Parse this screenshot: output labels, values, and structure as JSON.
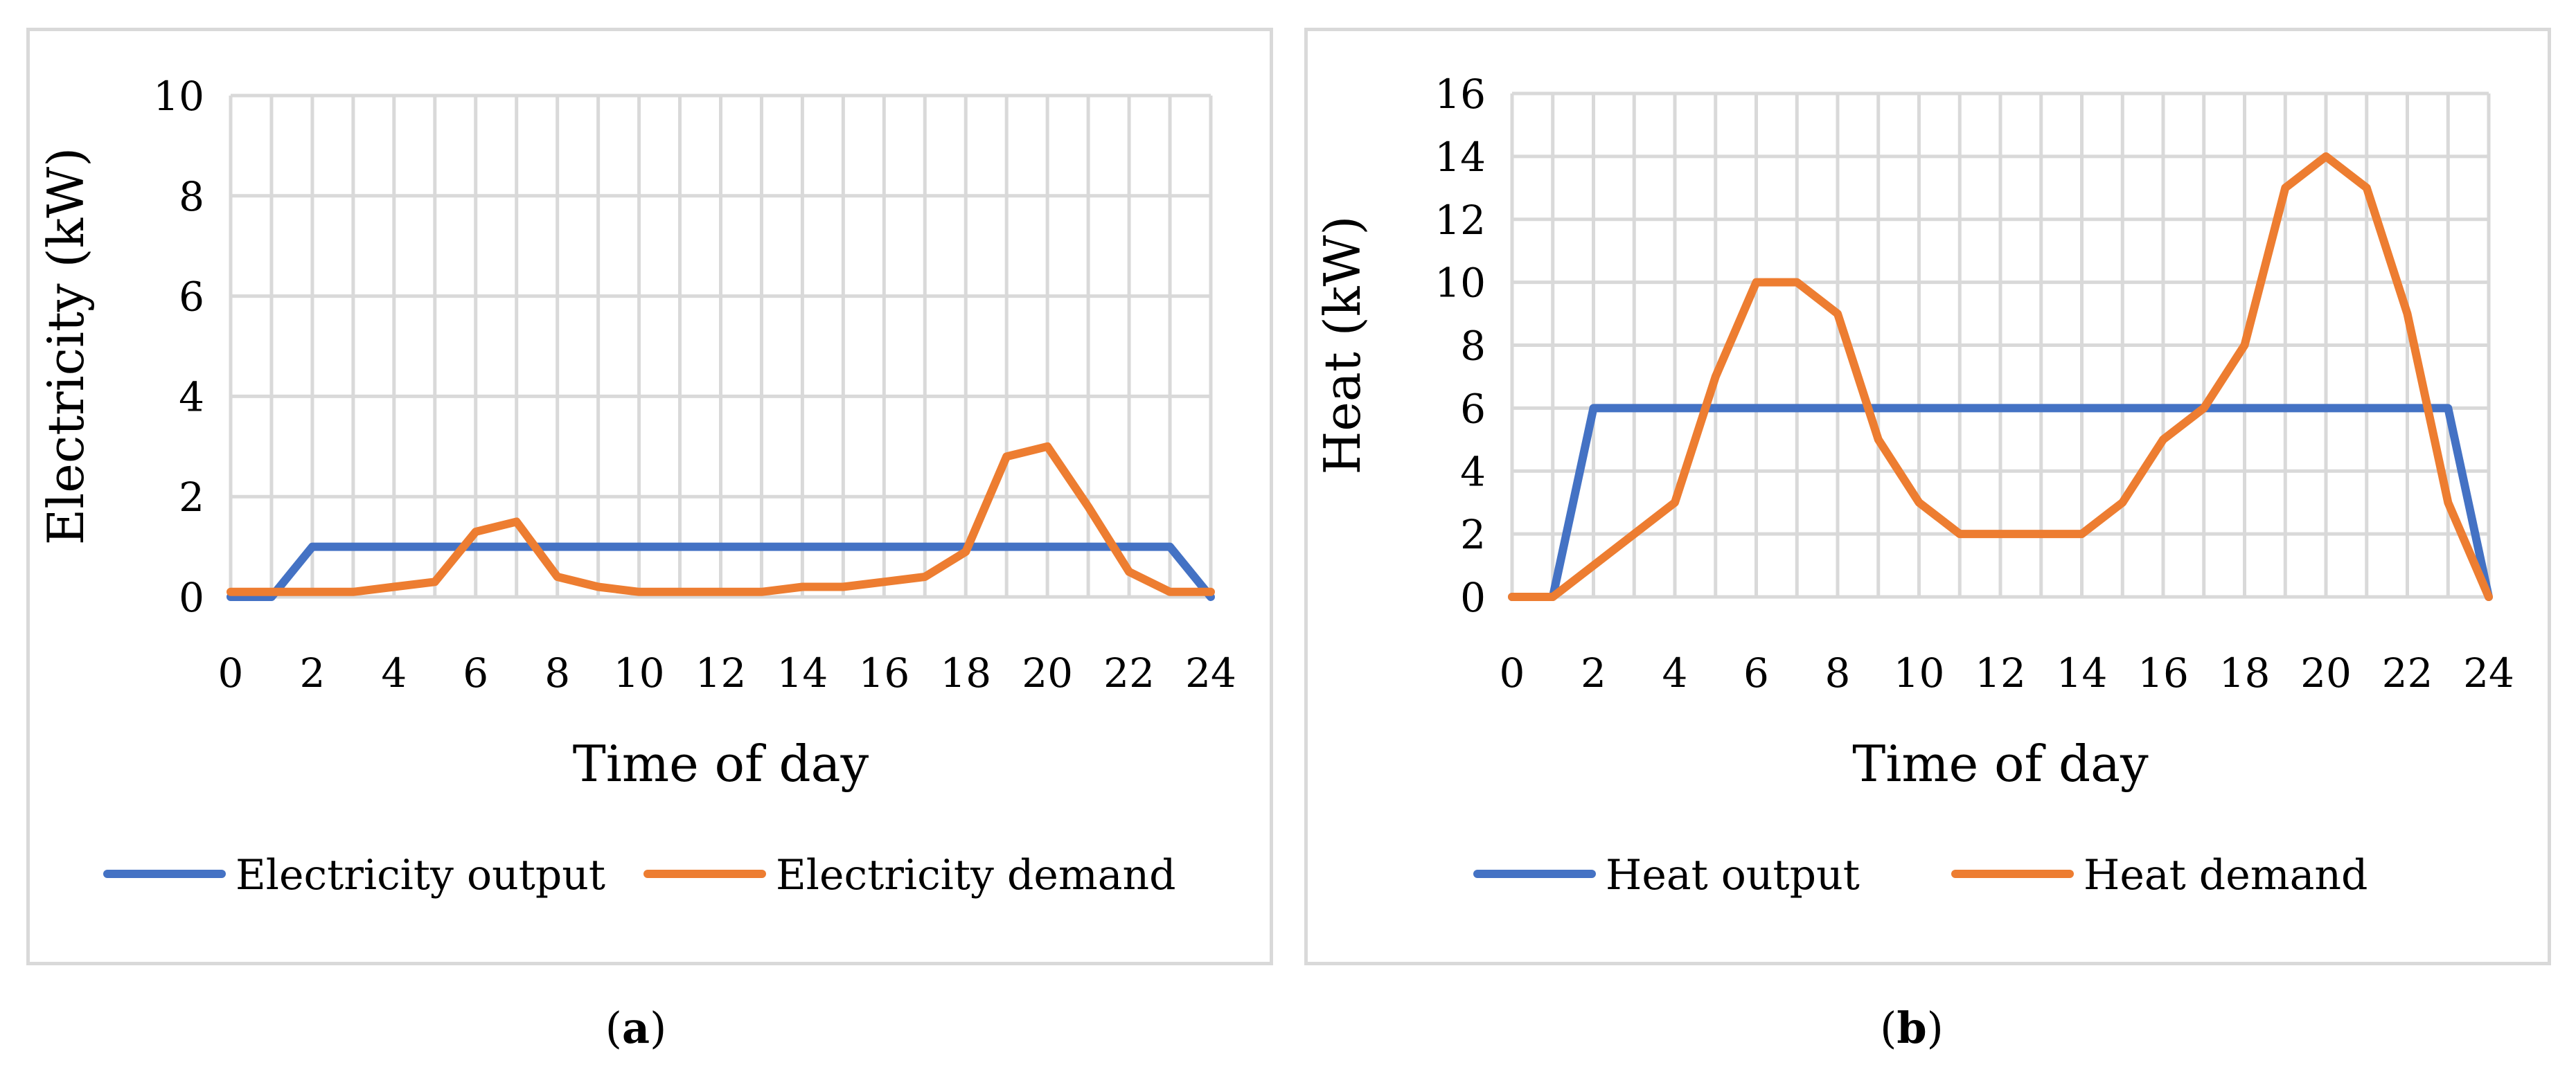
{
  "chart_data": [
    {
      "type": "line",
      "caption_letter": "a",
      "xlabel": "Time of day",
      "ylabel": "Electricity (kW)",
      "xlim": [
        0,
        24
      ],
      "ylim": [
        0,
        10
      ],
      "x_ticks": [
        "0",
        "2",
        "4",
        "6",
        "8",
        "10",
        "12",
        "14",
        "16",
        "18",
        "20",
        "22",
        "24"
      ],
      "y_ticks": [
        "0",
        "2",
        "4",
        "6",
        "8",
        "10"
      ],
      "grid": true,
      "legend_position": "bottom",
      "x": [
        0,
        1,
        2,
        3,
        4,
        5,
        6,
        7,
        8,
        9,
        10,
        11,
        12,
        13,
        14,
        15,
        16,
        17,
        18,
        19,
        20,
        21,
        22,
        23,
        24
      ],
      "series": [
        {
          "name": "Electricity output",
          "color": "#4472c4",
          "values": [
            0,
            0,
            1,
            1,
            1,
            1,
            1,
            1,
            1,
            1,
            1,
            1,
            1,
            1,
            1,
            1,
            1,
            1,
            1,
            1,
            1,
            1,
            1,
            1,
            0
          ]
        },
        {
          "name": "Electricity demand",
          "color": "#ed7d31",
          "values": [
            0.1,
            0.1,
            0.1,
            0.1,
            0.2,
            0.3,
            1.3,
            1.5,
            0.4,
            0.2,
            0.1,
            0.1,
            0.1,
            0.1,
            0.2,
            0.2,
            0.3,
            0.4,
            0.9,
            2.8,
            3.0,
            1.8,
            0.5,
            0.1,
            0.1
          ]
        }
      ]
    },
    {
      "type": "line",
      "caption_letter": "b",
      "xlabel": "Time of day",
      "ylabel": "Heat (kW)",
      "xlim": [
        0,
        24
      ],
      "ylim": [
        0,
        16
      ],
      "x_ticks": [
        "0",
        "2",
        "4",
        "6",
        "8",
        "10",
        "12",
        "14",
        "16",
        "18",
        "20",
        "22",
        "24"
      ],
      "y_ticks": [
        "0",
        "2",
        "4",
        "6",
        "8",
        "10",
        "12",
        "14",
        "16"
      ],
      "grid": true,
      "legend_position": "bottom",
      "x": [
        0,
        1,
        2,
        3,
        4,
        5,
        6,
        7,
        8,
        9,
        10,
        11,
        12,
        13,
        14,
        15,
        16,
        17,
        18,
        19,
        20,
        21,
        22,
        23,
        24
      ],
      "series": [
        {
          "name": "Heat output",
          "color": "#4472c4",
          "values": [
            0,
            0,
            6,
            6,
            6,
            6,
            6,
            6,
            6,
            6,
            6,
            6,
            6,
            6,
            6,
            6,
            6,
            6,
            6,
            6,
            6,
            6,
            6,
            6,
            0
          ]
        },
        {
          "name": "Heat demand",
          "color": "#ed7d31",
          "values": [
            0,
            0,
            1,
            2,
            3,
            7,
            10,
            10,
            9,
            5,
            3,
            2,
            2,
            2,
            2,
            3,
            5,
            6,
            8,
            13,
            14,
            13,
            9,
            3,
            0
          ]
        }
      ]
    }
  ]
}
